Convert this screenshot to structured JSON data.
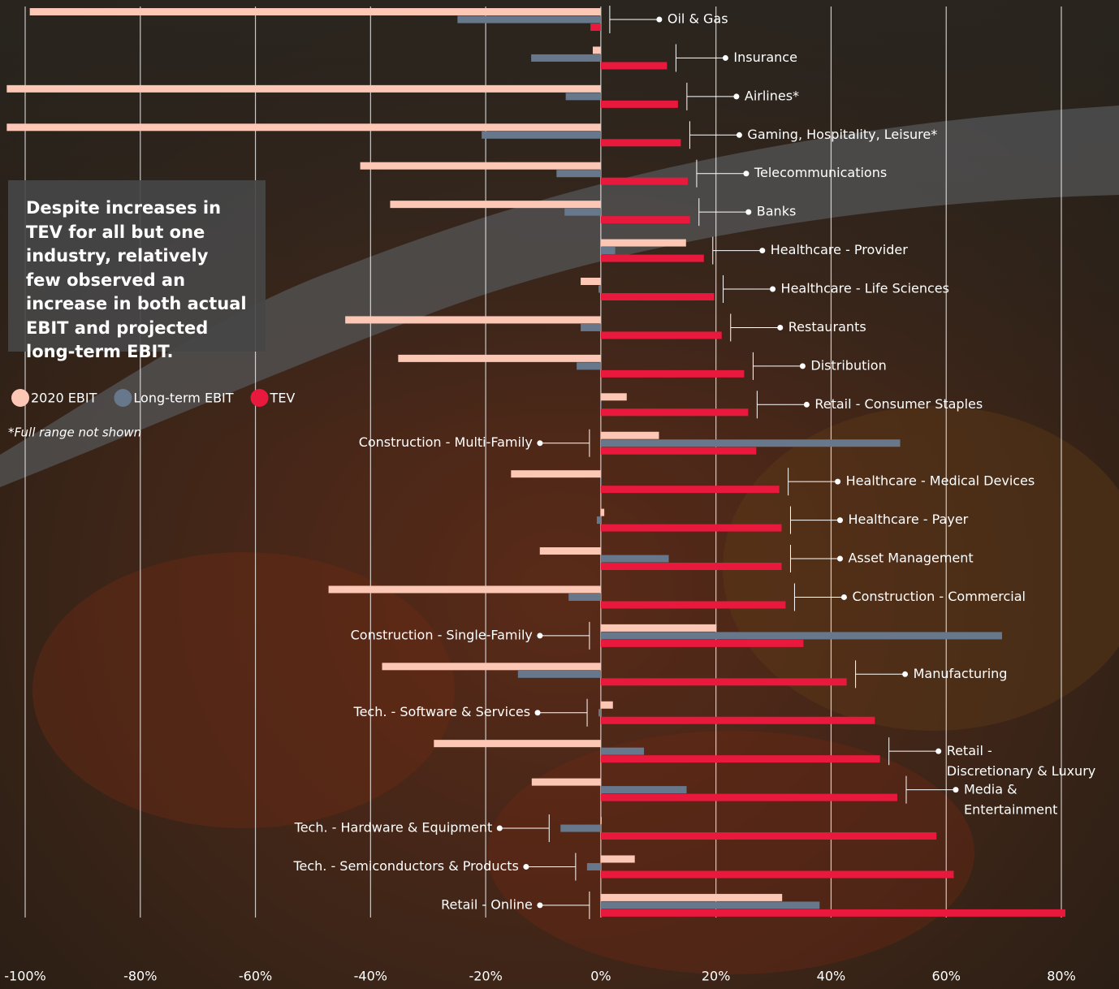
{
  "chart_data": {
    "type": "bar",
    "orientation": "horizontal",
    "title": "Despite increases in TEV for all but one industry, relatively few observed an increase in both actual EBIT and projected long-term EBIT.",
    "note": "*Full range not shown",
    "categories": [
      "Oil & Gas",
      "Insurance",
      "Airlines*",
      "Gaming, Hospitality, Leisure*",
      "Telecommunications",
      "Banks",
      "Healthcare - Provider",
      "Healthcare - Life Sciences",
      "Restaurants",
      "Distribution",
      "Retail - Consumer Staples",
      "Construction - Multi-Family",
      "Healthcare - Medical Devices",
      "Healthcare - Payer",
      "Asset Management",
      "Construction - Commercial",
      "Construction - Single-Family",
      "Manufacturing",
      "Tech. - Software & Services",
      "Retail - Discretionary & Luxury",
      "Media & Entertainment",
      "Tech. - Hardware & Equipment",
      "Tech. - Semiconductors & Products",
      "Retail - Online"
    ],
    "series": [
      {
        "name": "2020 EBIT",
        "color": "#fcc7b5",
        "values": [
          -99.2,
          -1.4,
          -103.2,
          -103.2,
          -41.8,
          -36.6,
          14.8,
          -3.5,
          -44.4,
          -35.2,
          4.5,
          10.1,
          -15.6,
          0.6,
          -10.6,
          -47.3,
          20.1,
          -38.0,
          2.1,
          -29.0,
          -12.0,
          0,
          5.9,
          31.5
        ]
      },
      {
        "name": "Long-term EBIT",
        "color": "#67788c",
        "values": [
          -24.9,
          -12.1,
          -6.1,
          -20.7,
          -7.7,
          -6.3,
          2.5,
          -0.4,
          -3.5,
          -4.2,
          0,
          52.0,
          0.1,
          -0.7,
          11.8,
          -5.6,
          69.7,
          -14.4,
          -0.4,
          7.5,
          14.9,
          -7.0,
          -2.4,
          38.0
        ]
      },
      {
        "name": "TEV",
        "color": "#e8193c",
        "values": [
          -1.8,
          11.5,
          13.4,
          13.9,
          15.1,
          15.5,
          17.9,
          19.7,
          21.0,
          24.9,
          25.6,
          27.0,
          31.0,
          31.4,
          31.4,
          32.1,
          35.2,
          42.7,
          47.6,
          48.5,
          51.5,
          58.3,
          61.3,
          80.7
        ]
      }
    ],
    "xlim": [
      -100,
      80
    ],
    "xticks": [
      {
        "value": -100,
        "label": "-100%"
      },
      {
        "value": -80,
        "label": "-80%"
      },
      {
        "value": -60,
        "label": "-60%"
      },
      {
        "value": -40,
        "label": "-40%"
      },
      {
        "value": -20,
        "label": "-20%"
      },
      {
        "value": 0,
        "label": "0%"
      },
      {
        "value": 20,
        "label": "20%"
      },
      {
        "value": 40,
        "label": "40%"
      },
      {
        "value": 60,
        "label": "60%"
      },
      {
        "value": 80,
        "label": "80%"
      }
    ],
    "grid": true
  }
}
